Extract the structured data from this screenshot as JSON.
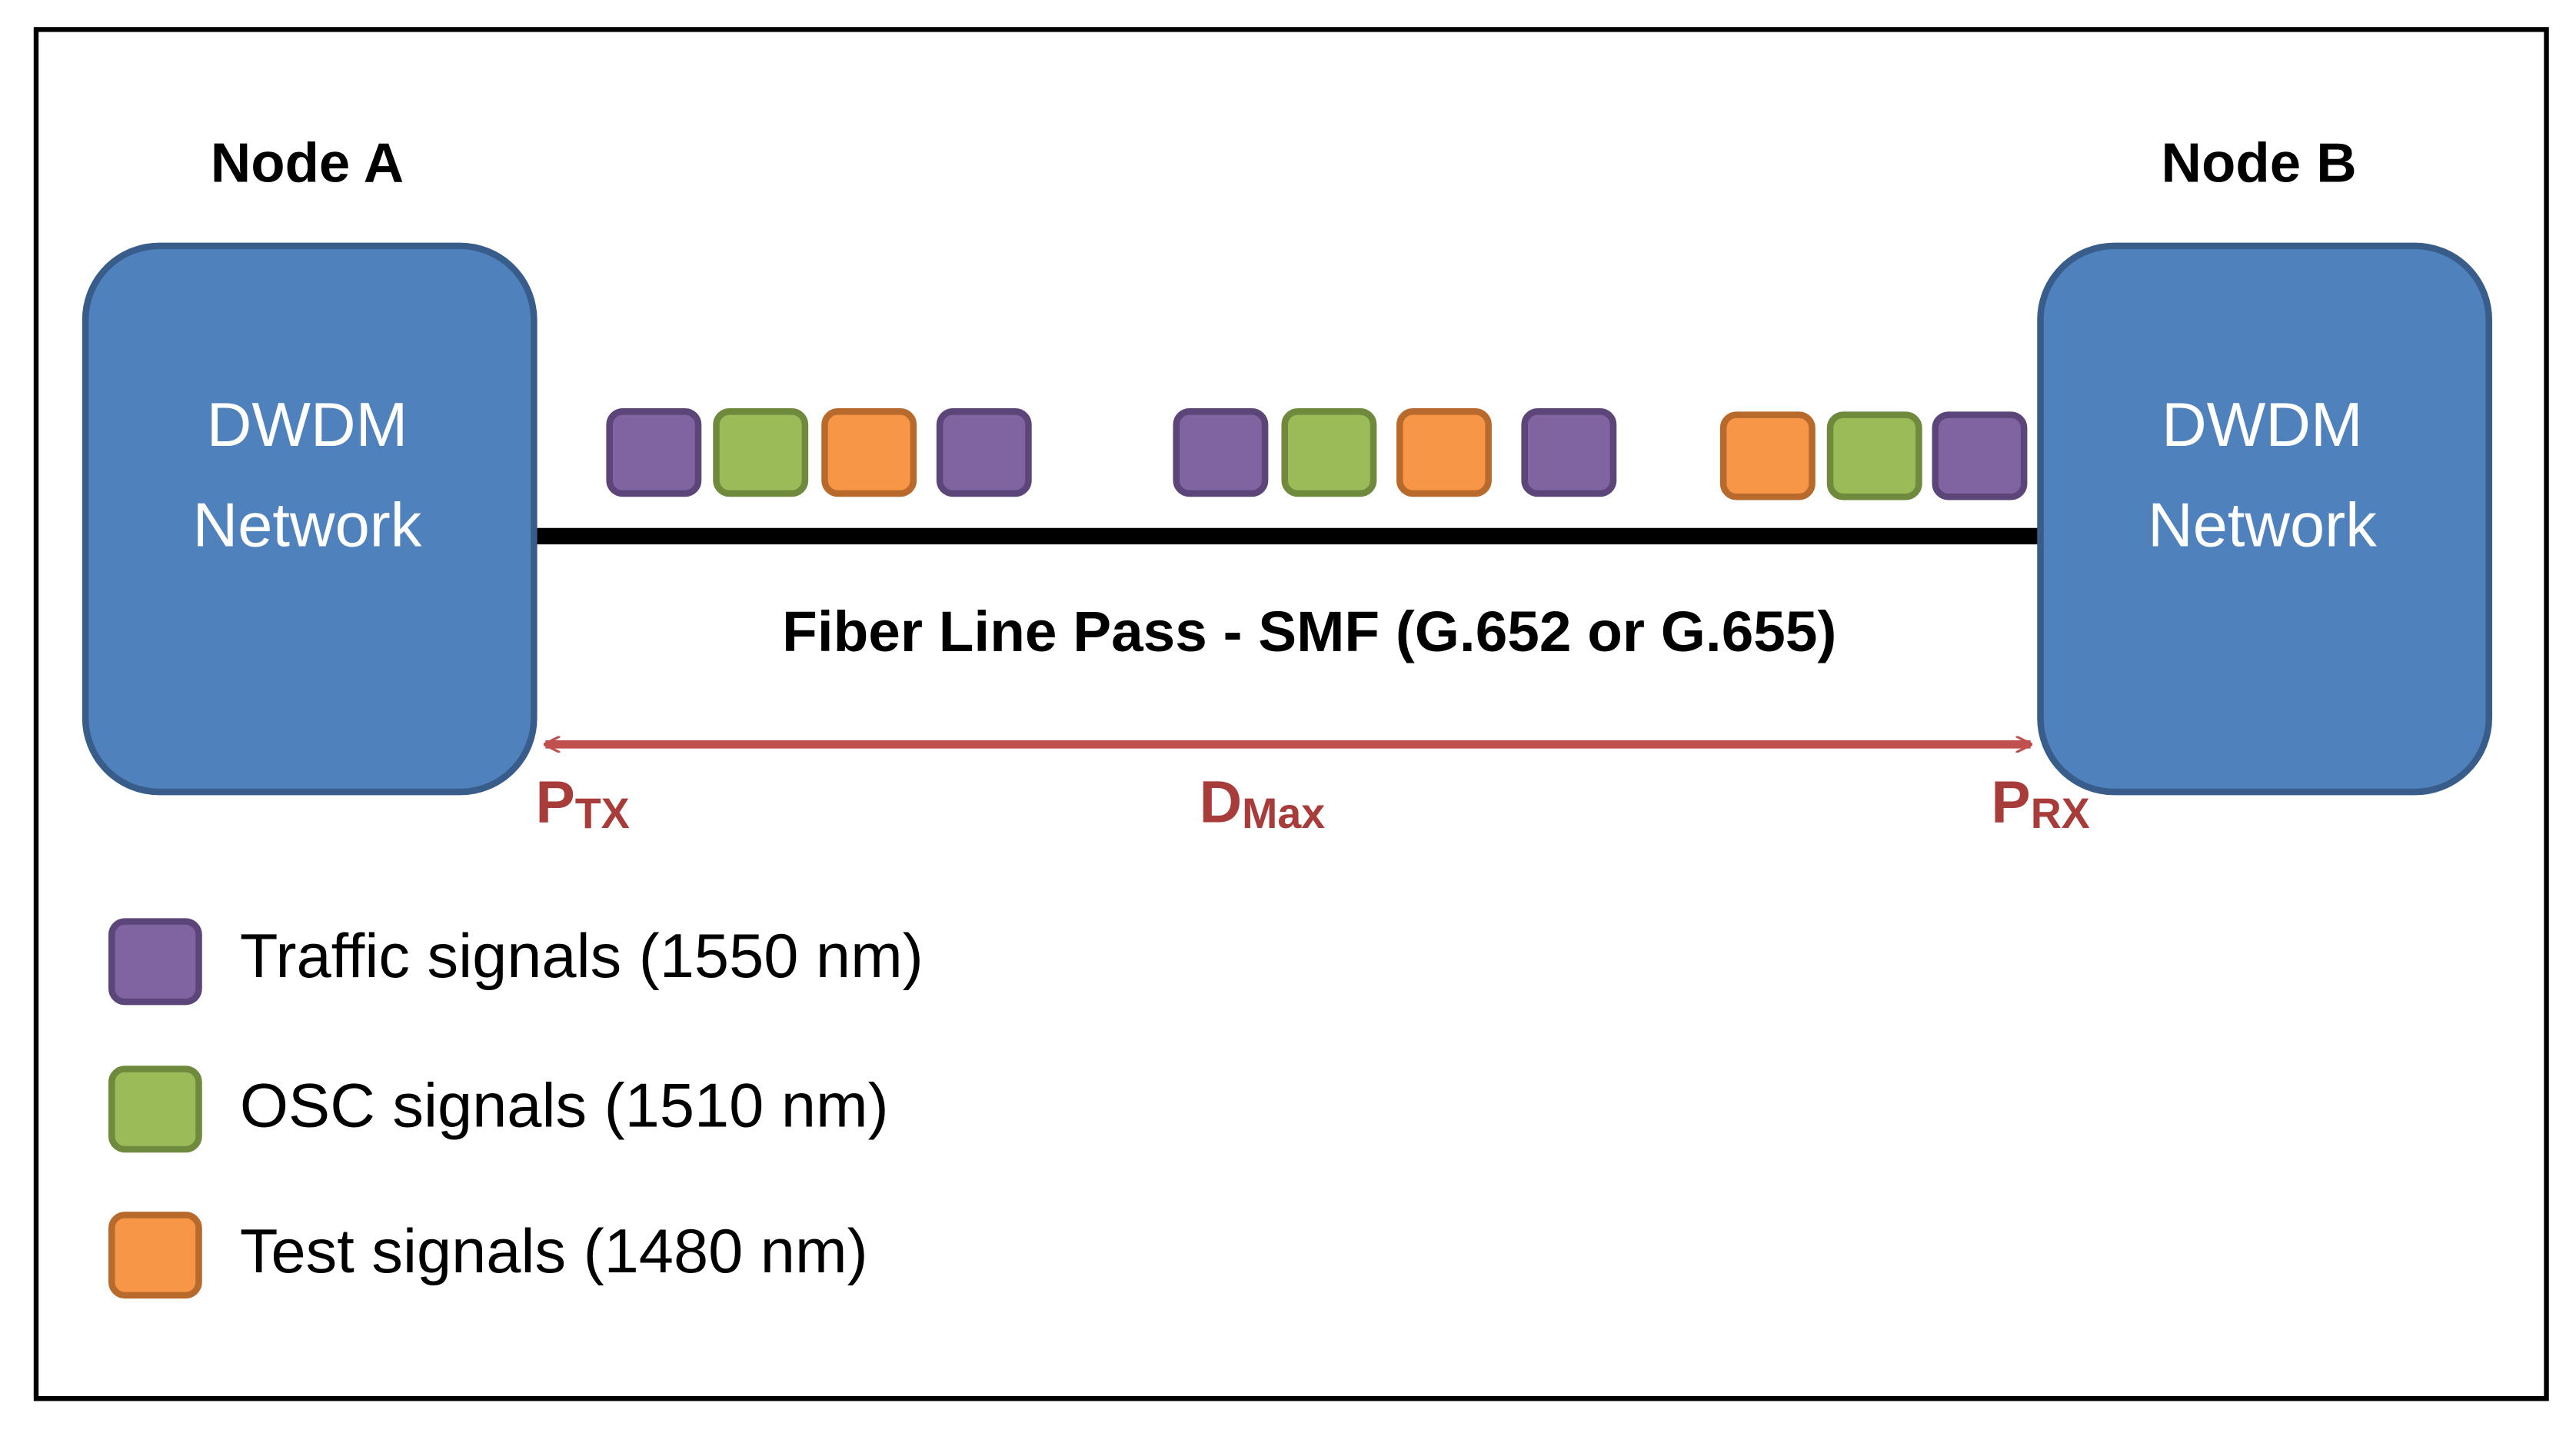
{
  "nodes": [
    {
      "title": "Node A",
      "label": [
        "DWDM",
        "Network"
      ]
    },
    {
      "title": "Node B",
      "label": [
        "DWDM",
        "Network"
      ]
    }
  ],
  "fiber": {
    "label": "Fiber Line Pass - SMF (G.652 or G.655)"
  },
  "measures": {
    "tx": {
      "main": "P",
      "sub": "TX"
    },
    "distance": {
      "main": "D",
      "sub": "Max"
    },
    "rx": {
      "main": "P",
      "sub": "RX"
    }
  },
  "legend": [
    {
      "label": "Traffic signals (1550 nm)"
    },
    {
      "label": "OSC signals (1510 nm)"
    },
    {
      "label": "Test signals (1480 nm)"
    }
  ]
}
